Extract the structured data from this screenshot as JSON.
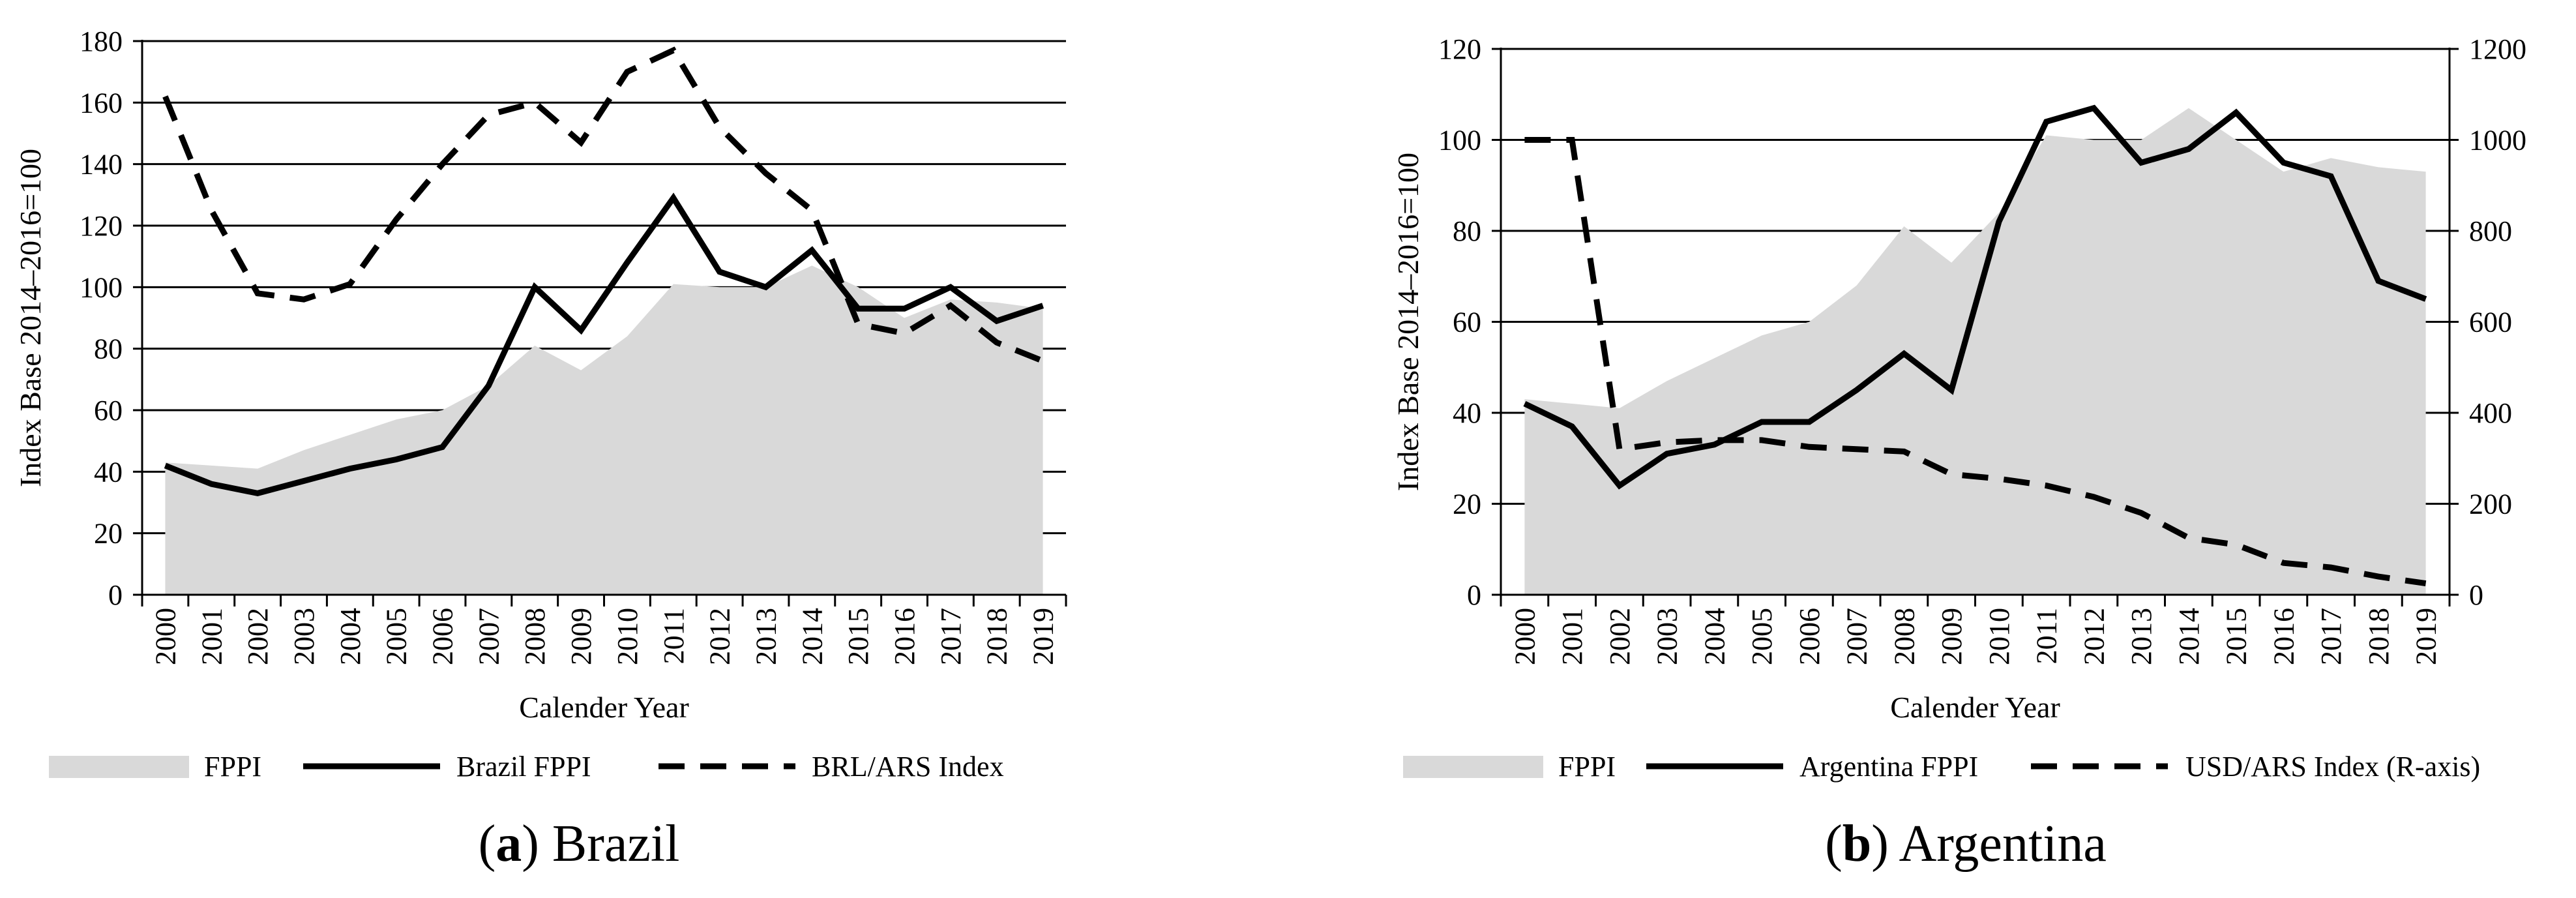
{
  "colors": {
    "area": "#d9d9d9",
    "line": "#000000",
    "grid": "#000000"
  },
  "chart_data": [
    {
      "type": "line",
      "caption": {
        "open": "(",
        "letter": "a",
        "close": ")",
        "title": " Brazil"
      },
      "xlabel": "Calender Year",
      "ylabel": "Index Base 2014–2016=100",
      "categories": [
        "2000",
        "2001",
        "2002",
        "2003",
        "2004",
        "2005",
        "2006",
        "2007",
        "2008",
        "2009",
        "2010",
        "2011",
        "2012",
        "2013",
        "2014",
        "2015",
        "2016",
        "2017",
        "2018",
        "2019"
      ],
      "ylim": [
        0,
        180
      ],
      "yticks": [
        "0",
        "20",
        "40",
        "60",
        "80",
        "100",
        "120",
        "140",
        "160",
        "180"
      ],
      "grid": true,
      "legend_position": "bottom",
      "series": [
        {
          "name": "FPPI",
          "kind": "area",
          "axis": "left",
          "values": [
            43,
            42,
            41,
            47,
            52,
            57,
            60,
            68,
            81,
            73,
            84,
            101,
            100,
            100,
            107,
            100,
            90,
            96,
            95,
            93
          ]
        },
        {
          "name": "Brazil FPPI",
          "kind": "line",
          "axis": "left",
          "values": [
            42,
            36,
            33,
            37,
            41,
            44,
            48,
            68,
            100,
            86,
            108,
            129,
            105,
            100,
            112,
            93,
            93,
            100,
            89,
            94
          ]
        },
        {
          "name": "BRL/ARS Index",
          "kind": "dashed",
          "axis": "left",
          "values": [
            162,
            125,
            98,
            96,
            101,
            122,
            140,
            156,
            160,
            147,
            170,
            177,
            152,
            137,
            125,
            88,
            85,
            94,
            82,
            76
          ]
        }
      ]
    },
    {
      "type": "line",
      "caption": {
        "open": "(",
        "letter": "b",
        "close": ")",
        "title": " Argentina"
      },
      "xlabel": "Calender Year",
      "ylabel": "Index Base 2014–2016=100",
      "categories": [
        "2000",
        "2001",
        "2002",
        "2003",
        "2004",
        "2005",
        "2006",
        "2007",
        "2008",
        "2009",
        "2010",
        "2011",
        "2012",
        "2013",
        "2014",
        "2015",
        "2016",
        "2017",
        "2018",
        "2019"
      ],
      "ylim": [
        0,
        120
      ],
      "yticks": [
        "0",
        "20",
        "40",
        "60",
        "80",
        "100",
        "120"
      ],
      "y2lim": [
        0,
        1200
      ],
      "y2ticks": [
        "0",
        "200",
        "400",
        "600",
        "800",
        "1000",
        "1200"
      ],
      "grid": true,
      "legend_position": "bottom",
      "series": [
        {
          "name": "FPPI",
          "kind": "area",
          "axis": "left",
          "values": [
            43,
            42,
            41,
            47,
            52,
            57,
            60,
            68,
            81,
            73,
            84,
            101,
            100,
            100,
            107,
            100,
            93,
            96,
            94,
            93
          ]
        },
        {
          "name": "Argentina FPPI",
          "kind": "line",
          "axis": "left",
          "values": [
            42,
            37,
            24,
            31,
            33,
            38,
            38,
            45,
            53,
            45,
            82,
            104,
            107,
            95,
            98,
            106,
            95,
            92,
            69,
            65
          ]
        },
        {
          "name": "USD/ARS Index (R-axis)",
          "kind": "dashed",
          "axis": "right",
          "values": [
            1000,
            1000,
            320,
            335,
            340,
            340,
            325,
            320,
            315,
            265,
            255,
            240,
            215,
            180,
            125,
            110,
            70,
            60,
            40,
            25
          ]
        }
      ]
    }
  ]
}
